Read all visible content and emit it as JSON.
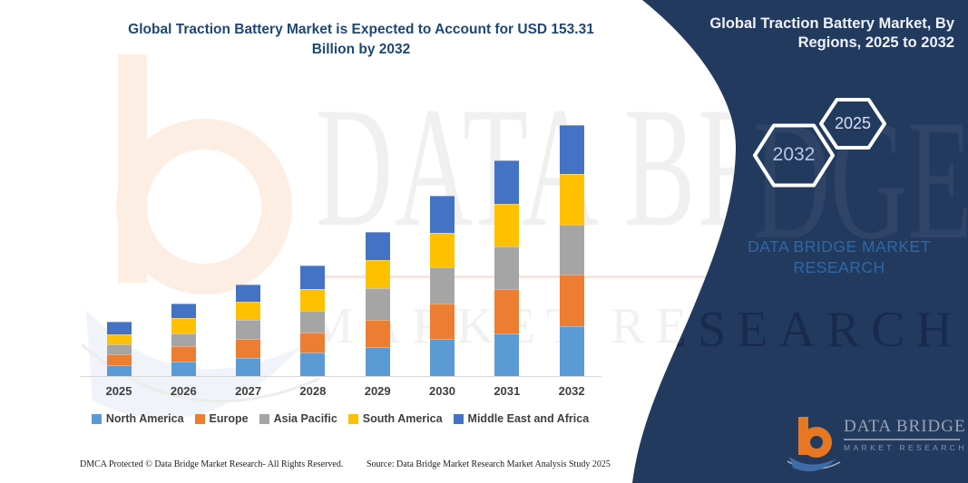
{
  "chart_data": {
    "type": "bar",
    "stacked": true,
    "title": "Global Traction Battery Market is Expected to Account for USD 153.31 Billion by 2032",
    "unit": "USD Billion",
    "categories": [
      "2025",
      "2026",
      "2027",
      "2028",
      "2029",
      "2030",
      "2031",
      "2032"
    ],
    "series": [
      {
        "name": "North America",
        "color": "#5B9BD5",
        "values": [
          6.8,
          8.9,
          11.1,
          14.2,
          17.9,
          22.5,
          26.2,
          30.5
        ]
      },
      {
        "name": "Europe",
        "color": "#ED7D31",
        "values": [
          6.4,
          9.2,
          11.6,
          12.6,
          16.6,
          21.8,
          27.0,
          31.4
        ]
      },
      {
        "name": "Asia Pacific",
        "color": "#A5A5A5",
        "values": [
          6.2,
          8.1,
          11.5,
          13.3,
          19.0,
          22.1,
          26.1,
          30.8
        ]
      },
      {
        "name": "South America",
        "color": "#FFC000",
        "values": [
          6.3,
          9.4,
          11.4,
          13.1,
          17.4,
          21.2,
          26.0,
          30.5
        ]
      },
      {
        "name": "Middle East and Africa",
        "color": "#4472C4",
        "values": [
          7.5,
          8.7,
          10.4,
          14.4,
          17.2,
          22.7,
          26.6,
          30.11
        ]
      }
    ],
    "totals": [
      33.2,
      44.3,
      56.0,
      67.6,
      88.1,
      110.3,
      131.9,
      153.31
    ],
    "ylim": [
      0,
      160
    ],
    "y_axis_visible": false,
    "grid": false,
    "legend_position": "bottom"
  },
  "left_section": {
    "title_line1": "Global Traction Battery Market is Expected to Account for USD 153.31",
    "title_line2": "Billion by 2032"
  },
  "right_panel": {
    "bg_color": "#233A5F",
    "title_line1": "Global Traction Battery Market, By",
    "title_line2": "Regions, 2025 to 2032",
    "hexagons": [
      {
        "label": "2032"
      },
      {
        "label": "2025"
      }
    ],
    "watermark_line1": "DATA BRIDGE MARKET",
    "watermark_line2": "RESEARCH"
  },
  "logo": {
    "name": "DATA BRIDGE",
    "subtitle": "MARKET RESEARCH",
    "orange": "#E87722",
    "blue": "#3F6CA6"
  },
  "watermarks": {
    "big_text": "DATA BRIDGE",
    "spaced_text": "MARKET RESEARCH",
    "navy_ghost": "DGE"
  },
  "footer": {
    "left": "DMCA Protected © Data Bridge Market Research-  All Rights Reserved.",
    "right": "Source: Data Bridge Market Research  Market Analysis Study 2025"
  }
}
